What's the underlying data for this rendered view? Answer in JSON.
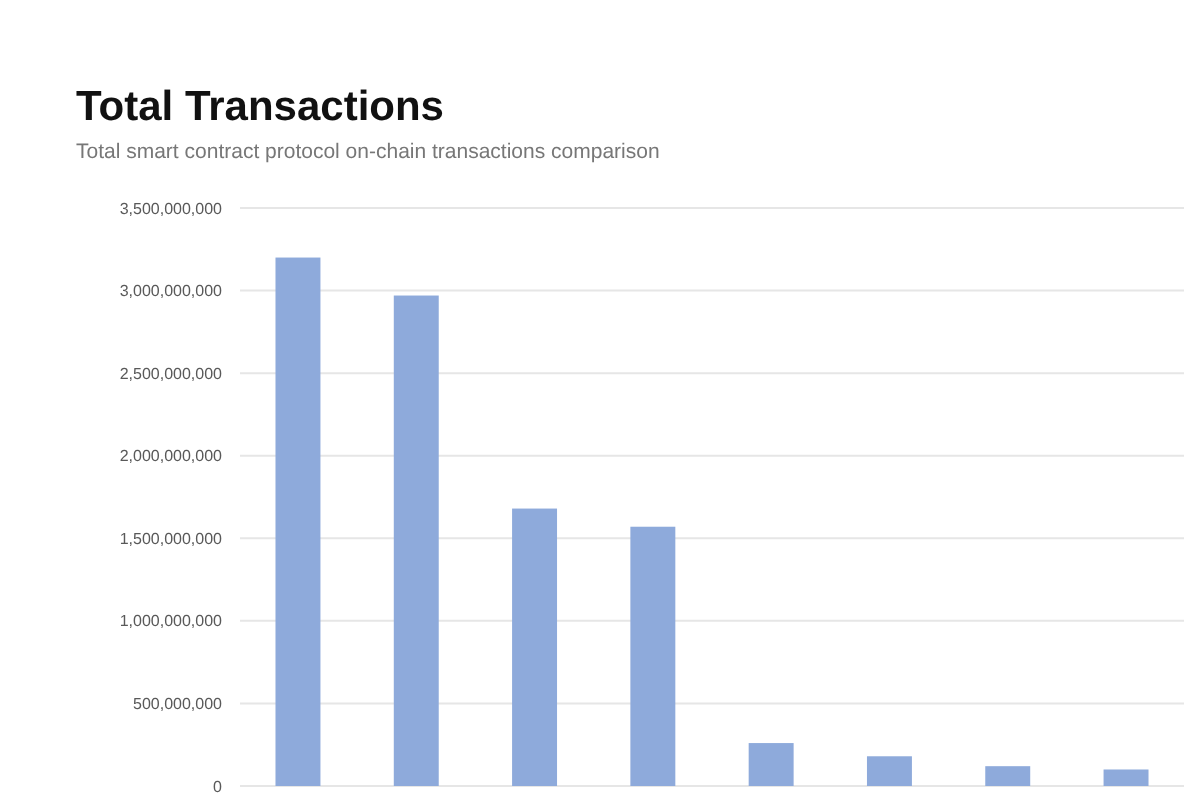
{
  "chart_data": {
    "type": "bar",
    "title": "Total Transactions",
    "subtitle": "Total smart contract protocol on-chain transactions comparison",
    "categories": [
      null,
      null,
      null,
      null,
      null,
      null,
      null,
      null
    ],
    "values": [
      3200000000,
      2970000000,
      1680000000,
      1570000000,
      260000000,
      180000000,
      120000000,
      100000000
    ],
    "color": "#8eaadb",
    "ylim": [
      0,
      3500000000
    ],
    "yticks": [
      {
        "value": 0,
        "label": "0"
      },
      {
        "value": 500000000,
        "label": "500,000,000"
      },
      {
        "value": 1000000000,
        "label": "1,000,000,000"
      },
      {
        "value": 1500000000,
        "label": "1,500,000,000"
      },
      {
        "value": 2000000000,
        "label": "2,000,000,000"
      },
      {
        "value": 2500000000,
        "label": "2,500,000,000"
      },
      {
        "value": 3000000000,
        "label": "3,000,000,000"
      },
      {
        "value": 3500000000,
        "label": "3,500,000,000"
      }
    ],
    "grid": "y"
  }
}
